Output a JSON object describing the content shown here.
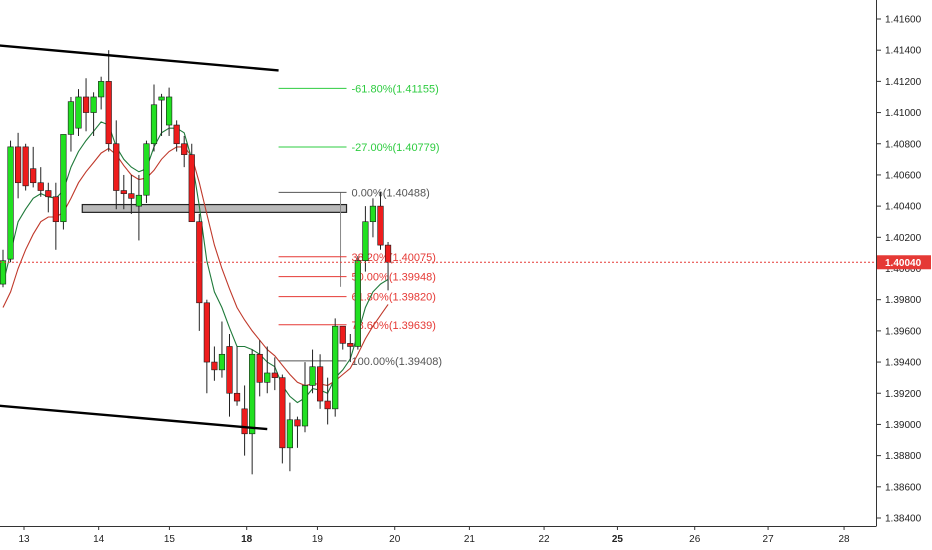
{
  "chart_data": {
    "type": "candlestick",
    "colors": {
      "up": "#21e021",
      "down": "#ee1c1c",
      "wick": "#222222",
      "ema_fast": "#1f7a3a",
      "ema_slow": "#c0392b",
      "current_price_line": "#e53935",
      "fib_green": "#2ecc40",
      "fib_gray": "#555555",
      "fib_red": "#e53935",
      "zone_fill": "#b9b9b9"
    },
    "ylim": [
      1.383,
      1.4178
    ],
    "y_ticks": [
      "1.41600",
      "1.41400",
      "1.41200",
      "1.41000",
      "1.40800",
      "1.40600",
      "1.40400",
      "1.40200",
      "1.40000",
      "1.39800",
      "1.39600",
      "1.39400",
      "1.39200",
      "1.39000",
      "1.38800",
      "1.38600",
      "1.38400"
    ],
    "x_ticks": [
      {
        "label": "13",
        "bold": false
      },
      {
        "label": "14",
        "bold": false
      },
      {
        "label": "15",
        "bold": false
      },
      {
        "label": "18",
        "bold": true
      },
      {
        "label": "19",
        "bold": false
      },
      {
        "label": "20",
        "bold": false
      },
      {
        "label": "21",
        "bold": false
      },
      {
        "label": "22",
        "bold": false
      },
      {
        "label": "25",
        "bold": true
      },
      {
        "label": "26",
        "bold": false
      },
      {
        "label": "27",
        "bold": false
      },
      {
        "label": "28",
        "bold": false
      }
    ],
    "current_price": {
      "value": 1.4004,
      "label": "1.40040"
    },
    "candles": [
      {
        "o": 1.399,
        "h": 1.4012,
        "l": 1.3988,
        "c": 1.4005
      },
      {
        "o": 1.4006,
        "h": 1.4082,
        "l": 1.4004,
        "c": 1.4078
      },
      {
        "o": 1.4078,
        "h": 1.4087,
        "l": 1.4045,
        "c": 1.4055
      },
      {
        "o": 1.4078,
        "h": 1.408,
        "l": 1.405,
        "c": 1.4053
      },
      {
        "o": 1.4064,
        "h": 1.4078,
        "l": 1.4052,
        "c": 1.4055
      },
      {
        "o": 1.4055,
        "h": 1.4065,
        "l": 1.4046,
        "c": 1.405
      },
      {
        "o": 1.405,
        "h": 1.4055,
        "l": 1.4036,
        "c": 1.4046
      },
      {
        "o": 1.4046,
        "h": 1.4055,
        "l": 1.4012,
        "c": 1.403
      },
      {
        "o": 1.403,
        "h": 1.4086,
        "l": 1.4025,
        "c": 1.4086
      },
      {
        "o": 1.4086,
        "h": 1.411,
        "l": 1.4075,
        "c": 1.4107
      },
      {
        "o": 1.409,
        "h": 1.4115,
        "l": 1.4085,
        "c": 1.411
      },
      {
        "o": 1.411,
        "h": 1.4122,
        "l": 1.4088,
        "c": 1.41
      },
      {
        "o": 1.41,
        "h": 1.4113,
        "l": 1.4085,
        "c": 1.411
      },
      {
        "o": 1.411,
        "h": 1.4123,
        "l": 1.4102,
        "c": 1.412
      },
      {
        "o": 1.412,
        "h": 1.414,
        "l": 1.4075,
        "c": 1.408
      },
      {
        "o": 1.408,
        "h": 1.4095,
        "l": 1.4038,
        "c": 1.405
      },
      {
        "o": 1.405,
        "h": 1.406,
        "l": 1.4038,
        "c": 1.4048
      },
      {
        "o": 1.4048,
        "h": 1.406,
        "l": 1.4035,
        "c": 1.4045
      },
      {
        "o": 1.404,
        "h": 1.406,
        "l": 1.4018,
        "c": 1.4047
      },
      {
        "o": 1.4047,
        "h": 1.4082,
        "l": 1.4042,
        "c": 1.408
      },
      {
        "o": 1.408,
        "h": 1.4118,
        "l": 1.4075,
        "c": 1.4105
      },
      {
        "o": 1.4108,
        "h": 1.4112,
        "l": 1.4085,
        "c": 1.411
      },
      {
        "o": 1.4092,
        "h": 1.4116,
        "l": 1.4085,
        "c": 1.411
      },
      {
        "o": 1.4092,
        "h": 1.4095,
        "l": 1.4075,
        "c": 1.408
      },
      {
        "o": 1.408,
        "h": 1.4085,
        "l": 1.4065,
        "c": 1.4073
      },
      {
        "o": 1.4073,
        "h": 1.408,
        "l": 1.403,
        "c": 1.403
      },
      {
        "o": 1.403,
        "h": 1.4035,
        "l": 1.396,
        "c": 1.3978
      },
      {
        "o": 1.3978,
        "h": 1.398,
        "l": 1.392,
        "c": 1.394
      },
      {
        "o": 1.394,
        "h": 1.395,
        "l": 1.3928,
        "c": 1.3935
      },
      {
        "o": 1.3935,
        "h": 1.3966,
        "l": 1.393,
        "c": 1.3945
      },
      {
        "o": 1.395,
        "h": 1.3958,
        "l": 1.3905,
        "c": 1.392
      },
      {
        "o": 1.392,
        "h": 1.395,
        "l": 1.3912,
        "c": 1.3915
      },
      {
        "o": 1.391,
        "h": 1.3925,
        "l": 1.388,
        "c": 1.3894
      },
      {
        "o": 1.3894,
        "h": 1.3948,
        "l": 1.3868,
        "c": 1.3945
      },
      {
        "o": 1.3945,
        "h": 1.3954,
        "l": 1.3918,
        "c": 1.3927
      },
      {
        "o": 1.3927,
        "h": 1.395,
        "l": 1.392,
        "c": 1.3933
      },
      {
        "o": 1.3933,
        "h": 1.3943,
        "l": 1.3922,
        "c": 1.393
      },
      {
        "o": 1.393,
        "h": 1.3932,
        "l": 1.3875,
        "c": 1.3885
      },
      {
        "o": 1.3885,
        "h": 1.3914,
        "l": 1.387,
        "c": 1.3903
      },
      {
        "o": 1.3903,
        "h": 1.3905,
        "l": 1.3885,
        "c": 1.3899
      },
      {
        "o": 1.3899,
        "h": 1.394,
        "l": 1.3895,
        "c": 1.3925
      },
      {
        "o": 1.3925,
        "h": 1.3948,
        "l": 1.392,
        "c": 1.3937
      },
      {
        "o": 1.3937,
        "h": 1.3945,
        "l": 1.391,
        "c": 1.3915
      },
      {
        "o": 1.3915,
        "h": 1.393,
        "l": 1.39,
        "c": 1.391
      },
      {
        "o": 1.391,
        "h": 1.3968,
        "l": 1.3905,
        "c": 1.3963
      },
      {
        "o": 1.3963,
        "h": 1.3963,
        "l": 1.3948,
        "c": 1.3952
      },
      {
        "o": 1.3952,
        "h": 1.3958,
        "l": 1.394,
        "c": 1.395
      },
      {
        "o": 1.395,
        "h": 1.4008,
        "l": 1.3948,
        "c": 1.4005
      },
      {
        "o": 1.4005,
        "h": 1.404,
        "l": 1.3998,
        "c": 1.403
      },
      {
        "o": 1.403,
        "h": 1.4045,
        "l": 1.402,
        "c": 1.404
      },
      {
        "o": 1.404,
        "h": 1.4049,
        "l": 1.4012,
        "c": 1.4015
      },
      {
        "o": 1.4015,
        "h": 1.4017,
        "l": 1.3986,
        "c": 1.4004
      }
    ],
    "ema_fast": [
      1.399,
      1.401,
      1.403,
      1.4038,
      1.4045,
      1.4048,
      1.4046,
      1.4045,
      1.405,
      1.4065,
      1.4075,
      1.4082,
      1.4088,
      1.4094,
      1.4092,
      1.4078,
      1.407,
      1.4065,
      1.4062,
      1.4064,
      1.4078,
      1.4087,
      1.409,
      1.409,
      1.4087,
      1.407,
      1.404,
      1.4005,
      1.3985,
      1.3975,
      1.3962,
      1.395,
      1.395,
      1.3948,
      1.3945,
      1.394,
      1.3937,
      1.3925,
      1.3918,
      1.3914,
      1.3917,
      1.3923,
      1.3922,
      1.392,
      1.393,
      1.3935,
      1.3942,
      1.3958,
      1.3975,
      1.3985,
      1.399,
      1.3993
    ],
    "ema_slow": [
      1.3975,
      1.3985,
      1.4,
      1.4012,
      1.4022,
      1.403,
      1.4033,
      1.4033,
      1.4036,
      1.4045,
      1.4055,
      1.4062,
      1.4068,
      1.4074,
      1.4077,
      1.4073,
      1.4066,
      1.406,
      1.4057,
      1.4058,
      1.4063,
      1.407,
      1.4075,
      1.4078,
      1.4078,
      1.4072,
      1.4055,
      1.4035,
      1.4015,
      1.4,
      1.3987,
      1.3975,
      1.3967,
      1.396,
      1.3954,
      1.3948,
      1.3944,
      1.3938,
      1.3932,
      1.3927,
      1.3925,
      1.3926,
      1.3926,
      1.3925,
      1.3928,
      1.3932,
      1.3936,
      1.3945,
      1.3955,
      1.3963,
      1.397,
      1.3977
    ],
    "trendlines": [
      {
        "name": "upper-channel-line",
        "from": {
          "i": -0.5,
          "v": 1.4143
        },
        "to": {
          "i": 36.5,
          "v": 1.4127
        },
        "color": "#000000"
      },
      {
        "name": "lower-channel-line",
        "from": {
          "i": -0.5,
          "v": 1.3912
        },
        "to": {
          "i": 35.0,
          "v": 1.3897
        },
        "color": "#000000"
      }
    ],
    "resistance_zone": {
      "from_i": 10.5,
      "to_i": 45.5,
      "top": 1.4041,
      "bottom": 1.4036
    },
    "fib_levels": [
      {
        "label": "-61.80%(1.41155)",
        "value": 1.41155,
        "color": "fib_green"
      },
      {
        "label": "-27.00%(1.40779)",
        "value": 1.40779,
        "color": "fib_green"
      },
      {
        "label": "0.00%(1.40488)",
        "value": 1.40488,
        "color": "fib_gray"
      },
      {
        "label": "38.20%(1.40075)",
        "value": 1.40075,
        "color": "fib_red"
      },
      {
        "label": "50.00%(1.39948)",
        "value": 1.39948,
        "color": "fib_red"
      },
      {
        "label": "61.80%(1.39820)",
        "value": 1.3982,
        "color": "fib_red"
      },
      {
        "label": "78.60%(1.39639)",
        "value": 1.39639,
        "color": "fib_red"
      },
      {
        "label": "100.00%(1.39408)",
        "value": 1.39408,
        "color": "fib_gray"
      }
    ],
    "fib_range": {
      "from_i": 36.5,
      "to_i": 45.5
    }
  }
}
